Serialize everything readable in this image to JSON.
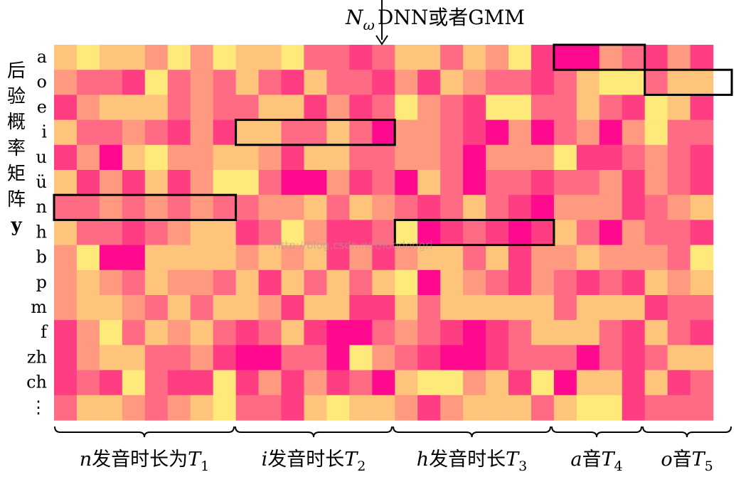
{
  "top_label": {
    "math_symbol": "N",
    "math_sub": "ω",
    "text": "DNN或者GMM"
  },
  "side_title": {
    "chars": [
      "后",
      "验",
      "概",
      "率",
      "矩",
      "阵"
    ],
    "var": "y"
  },
  "row_labels": [
    "a",
    "o",
    "e",
    "i",
    "u",
    "ü",
    "n",
    "h",
    "b",
    "p",
    "m",
    "f",
    "zh",
    "ch",
    "⋮"
  ],
  "groups": [
    {
      "var": "n",
      "text": "发音时长为",
      "T": "T",
      "sub": "1"
    },
    {
      "var": "i",
      "text": "发音时长",
      "T": "T",
      "sub": "2"
    },
    {
      "var": "h",
      "text": "发音时长",
      "T": "T",
      "sub": "3"
    },
    {
      "var": "a",
      "text": "音",
      "T": "T",
      "sub": "4"
    },
    {
      "var": "o",
      "text": "音",
      "T": "T",
      "sub": "5"
    }
  ],
  "watermark": "http://blog.csdn.net/luodongri",
  "palette": [
    "#ff0a8f",
    "#ff3d82",
    "#ff6a84",
    "#ff9a80",
    "#ffc47c",
    "#ffe97a"
  ],
  "matrix": [
    [
      4,
      5,
      4,
      4,
      3,
      5,
      3,
      5,
      4,
      4,
      5,
      2,
      2,
      1,
      2,
      4,
      4,
      2,
      4,
      3,
      5,
      1,
      0,
      0,
      3,
      2,
      1,
      3,
      1
    ],
    [
      3,
      2,
      2,
      1,
      5,
      2,
      3,
      2,
      4,
      2,
      1,
      4,
      2,
      2,
      1,
      3,
      1,
      4,
      3,
      2,
      2,
      1,
      2,
      4,
      5,
      5,
      2,
      4,
      4
    ],
    [
      1,
      3,
      4,
      4,
      4,
      2,
      3,
      2,
      2,
      4,
      4,
      1,
      3,
      1,
      2,
      5,
      3,
      2,
      1,
      5,
      5,
      2,
      2,
      4,
      2,
      1,
      5,
      4,
      1
    ],
    [
      4,
      2,
      2,
      3,
      2,
      1,
      3,
      1,
      4,
      4,
      2,
      2,
      4,
      2,
      0,
      3,
      3,
      2,
      1,
      0,
      3,
      0,
      2,
      3,
      0,
      3,
      5,
      2,
      2
    ],
    [
      1,
      3,
      0,
      4,
      5,
      3,
      3,
      4,
      4,
      3,
      1,
      4,
      4,
      2,
      2,
      3,
      3,
      2,
      0,
      3,
      3,
      3,
      5,
      1,
      1,
      2,
      3,
      2,
      1
    ],
    [
      4,
      1,
      3,
      1,
      4,
      1,
      3,
      5,
      5,
      2,
      0,
      0,
      3,
      1,
      2,
      0,
      4,
      2,
      0,
      2,
      2,
      1,
      2,
      2,
      3,
      1,
      3,
      2,
      1
    ],
    [
      2,
      2,
      3,
      2,
      3,
      2,
      3,
      2,
      2,
      3,
      3,
      4,
      2,
      4,
      3,
      2,
      1,
      2,
      4,
      2,
      1,
      0,
      3,
      3,
      3,
      1,
      2,
      3,
      4
    ],
    [
      4,
      2,
      2,
      1,
      2,
      3,
      4,
      4,
      1,
      2,
      5,
      3,
      1,
      1,
      2,
      5,
      0,
      1,
      2,
      1,
      0,
      1,
      4,
      2,
      0,
      3,
      2,
      2,
      1
    ],
    [
      3,
      5,
      0,
      0,
      4,
      4,
      4,
      4,
      3,
      4,
      3,
      4,
      1,
      3,
      1,
      3,
      4,
      4,
      2,
      4,
      1,
      3,
      3,
      4,
      3,
      3,
      3,
      2,
      5
    ],
    [
      3,
      4,
      3,
      2,
      4,
      3,
      3,
      2,
      4,
      1,
      4,
      2,
      4,
      2,
      4,
      5,
      0,
      4,
      3,
      2,
      1,
      3,
      2,
      1,
      2,
      1,
      4,
      3,
      4
    ],
    [
      3,
      4,
      4,
      3,
      2,
      4,
      2,
      4,
      4,
      3,
      1,
      4,
      4,
      1,
      1,
      4,
      2,
      4,
      4,
      4,
      4,
      4,
      2,
      4,
      4,
      4,
      1,
      2,
      2
    ],
    [
      1,
      3,
      5,
      2,
      4,
      3,
      4,
      2,
      1,
      2,
      4,
      1,
      0,
      0,
      2,
      3,
      2,
      1,
      0,
      1,
      2,
      4,
      4,
      4,
      2,
      1,
      4,
      2,
      1
    ],
    [
      1,
      3,
      4,
      4,
      2,
      2,
      3,
      1,
      0,
      0,
      2,
      2,
      0,
      5,
      3,
      2,
      1,
      0,
      0,
      1,
      2,
      2,
      2,
      0,
      2,
      1,
      2,
      4,
      4
    ],
    [
      1,
      2,
      1,
      5,
      2,
      1,
      1,
      5,
      1,
      3,
      1,
      3,
      1,
      2,
      0,
      4,
      5,
      5,
      3,
      4,
      1,
      5,
      0,
      4,
      4,
      1,
      4,
      1,
      2
    ],
    [
      2,
      4,
      4,
      3,
      2,
      3,
      4,
      5,
      2,
      2,
      1,
      4,
      5,
      4,
      4,
      3,
      1,
      3,
      4,
      4,
      4,
      2,
      4,
      5,
      5,
      1,
      2,
      2,
      2
    ]
  ]
}
